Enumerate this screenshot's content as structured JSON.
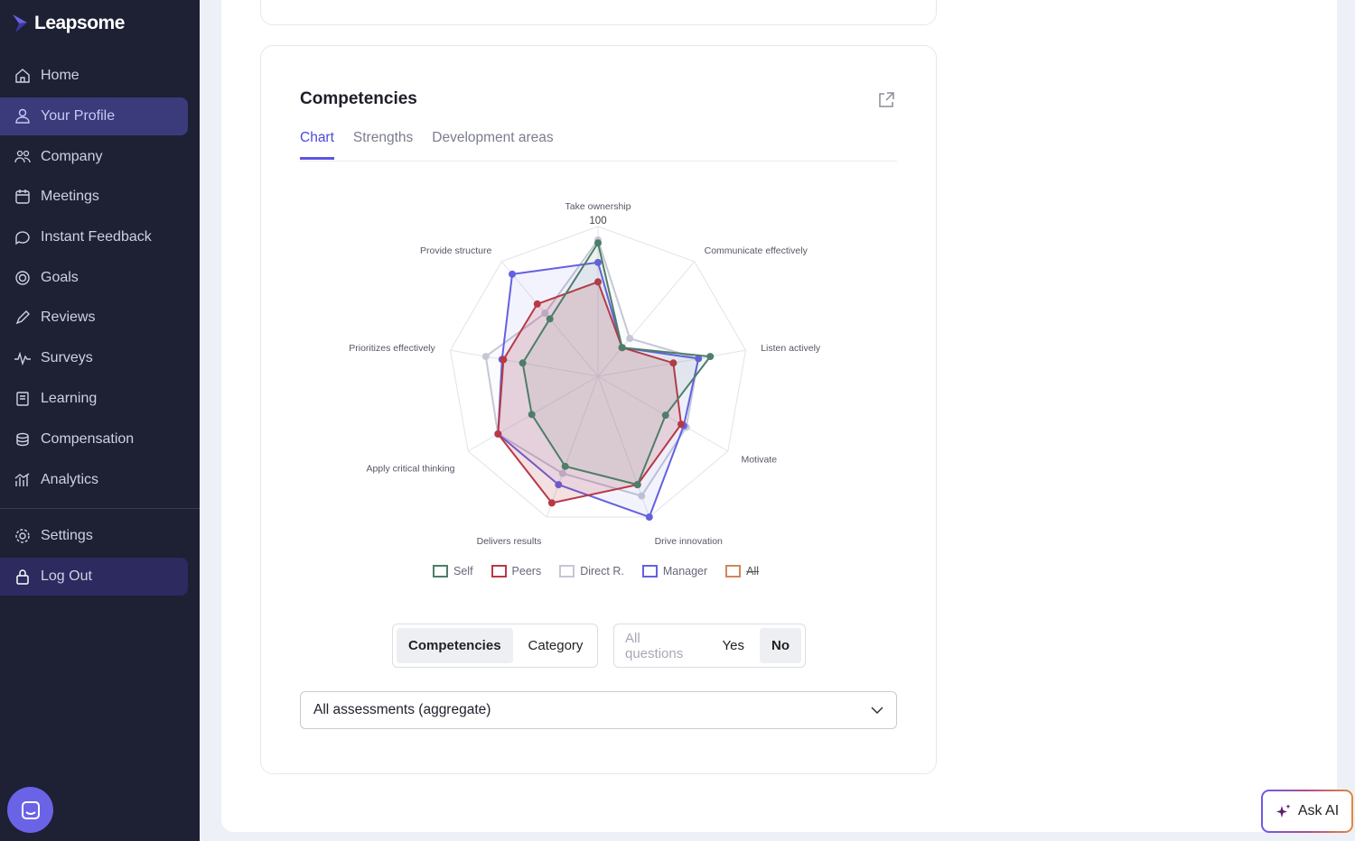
{
  "app": {
    "logo": "Leapsome"
  },
  "sidebar": {
    "items": [
      {
        "label": "Home",
        "icon": "home-icon"
      },
      {
        "label": "Your Profile",
        "icon": "user-icon",
        "active": true
      },
      {
        "label": "Company",
        "icon": "users-icon"
      },
      {
        "label": "Meetings",
        "icon": "calendar-icon"
      },
      {
        "label": "Instant Feedback",
        "icon": "chat-icon"
      },
      {
        "label": "Goals",
        "icon": "target-icon"
      },
      {
        "label": "Reviews",
        "icon": "pen-icon"
      },
      {
        "label": "Surveys",
        "icon": "pulse-icon"
      },
      {
        "label": "Learning",
        "icon": "book-icon"
      },
      {
        "label": "Compensation",
        "icon": "coins-icon"
      },
      {
        "label": "Analytics",
        "icon": "analytics-icon"
      }
    ],
    "bottom": [
      {
        "label": "Settings",
        "icon": "gear-icon"
      },
      {
        "label": "Log Out",
        "icon": "lock-icon"
      }
    ]
  },
  "card": {
    "title": "Competencies",
    "tabs": [
      "Chart",
      "Strengths",
      "Development areas"
    ],
    "active_tab": "Chart"
  },
  "chart_data": {
    "type": "radar",
    "axes": [
      "Take ownership",
      "Communicate effectively",
      "Listen actively",
      "Motivate",
      "Drive innovation",
      "Delivers results",
      "Apply critical thinking",
      "Prioritizes effectively",
      "Provide structure"
    ],
    "range": [
      0,
      100
    ],
    "tick_label": "100",
    "series": [
      {
        "name": "Direct R.",
        "color": "#c5c7d6",
        "values": [
          91,
          33,
          68,
          68,
          85,
          69,
          77,
          76,
          55
        ]
      },
      {
        "name": "Manager",
        "color": "#6461e0",
        "values": [
          76,
          25,
          68,
          66,
          100,
          77,
          77,
          65,
          89
        ]
      },
      {
        "name": "Peers",
        "color": "#b83945",
        "values": [
          63,
          25,
          51,
          64,
          77,
          90,
          77,
          64,
          63
        ]
      },
      {
        "name": "Self",
        "color": "#4f7d69",
        "values": [
          89,
          25,
          76,
          52,
          77,
          64,
          51,
          51,
          50
        ]
      }
    ],
    "legend": [
      {
        "name": "Self",
        "color": "#4f7d69"
      },
      {
        "name": "Peers",
        "color": "#b83945"
      },
      {
        "name": "Direct R.",
        "color": "#c5c7d6"
      },
      {
        "name": "Manager",
        "color": "#6461e0"
      },
      {
        "name": "All",
        "color": "#d0875a",
        "hidden": true
      }
    ],
    "legend_placement": "bottom"
  },
  "toggles": {
    "group1": [
      "Competencies",
      "Category"
    ],
    "group1_selected": "Competencies",
    "group2": [
      "All questions",
      "Yes",
      "No"
    ],
    "group2_selected": "No"
  },
  "select": {
    "value": "All assessments (aggregate)"
  },
  "ask_ai": "Ask AI"
}
